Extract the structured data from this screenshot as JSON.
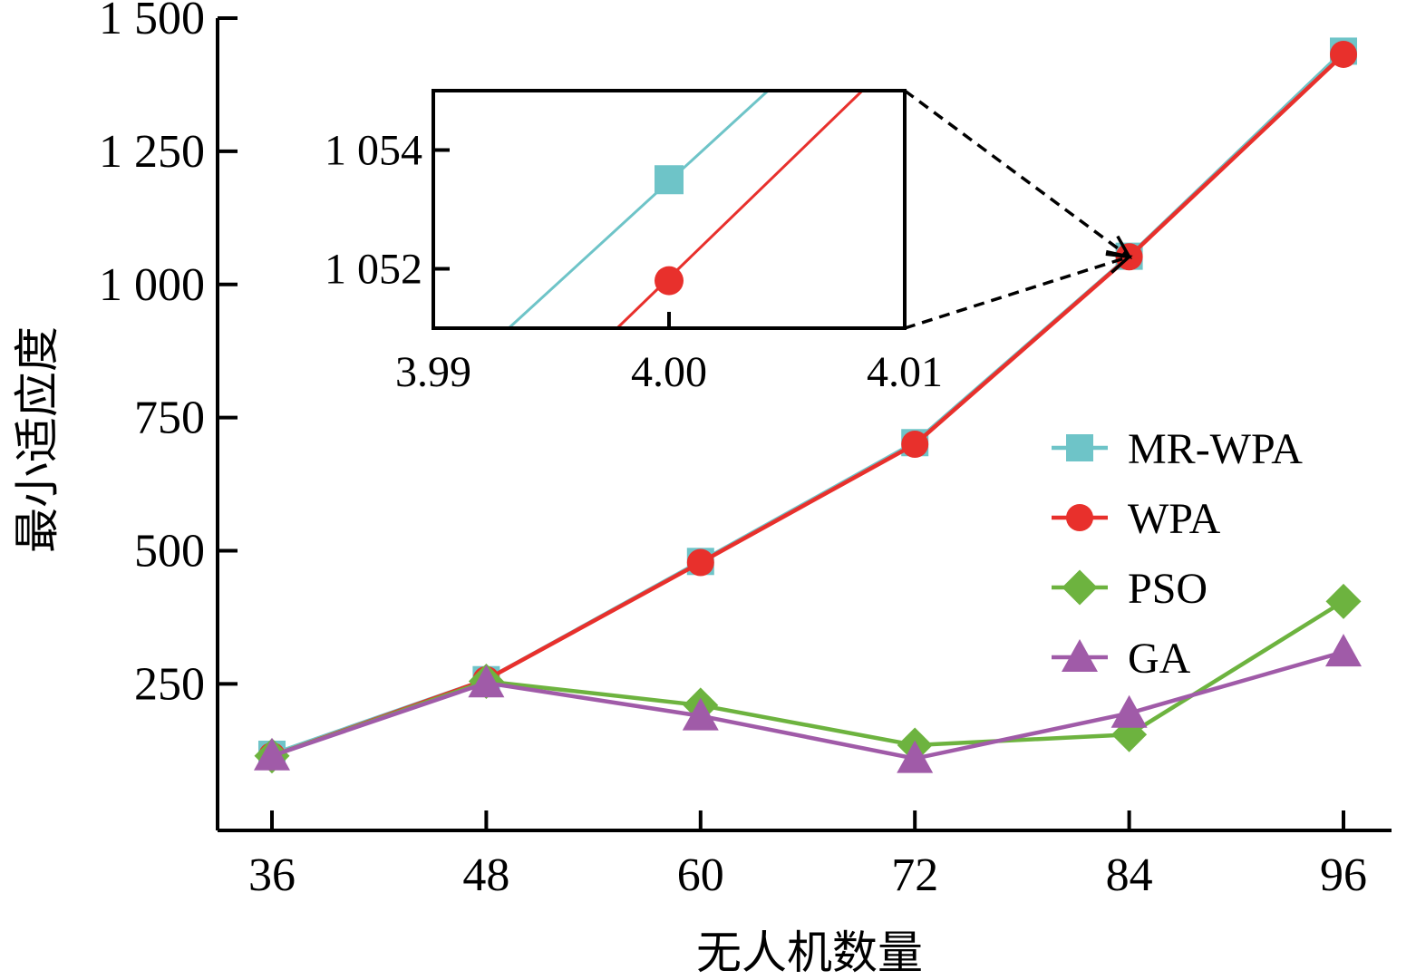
{
  "chart_data": {
    "type": "line",
    "title": "",
    "xlabel": "无人机数量",
    "ylabel": "最小适应度",
    "categories": [
      36,
      48,
      60,
      72,
      84,
      96
    ],
    "xtick_labels": [
      "36",
      "48",
      "60",
      "72",
      "84",
      "96"
    ],
    "ylim": [
      -25,
      1500
    ],
    "yticks": [
      250,
      500,
      750,
      1000,
      1250,
      1500
    ],
    "ytick_labels": [
      "250",
      "500",
      "750",
      "1 000",
      "1 250",
      "1 500"
    ],
    "grid": false,
    "legend_position": "right",
    "series": [
      {
        "name": "MR-WPA",
        "color": "#6ec4c8",
        "marker": "square",
        "values": [
          118,
          258,
          480,
          703,
          1053,
          1438
        ]
      },
      {
        "name": "WPA",
        "color": "#e8302c",
        "marker": "circle",
        "values": [
          115,
          258,
          478,
          700,
          1052,
          1432
        ]
      },
      {
        "name": "PSO",
        "color": "#6db33f",
        "marker": "diamond",
        "values": [
          115,
          255,
          210,
          135,
          155,
          405
        ]
      },
      {
        "name": "GA",
        "color": "#a05ba8",
        "marker": "triangle",
        "values": [
          115,
          252,
          190,
          110,
          195,
          310
        ]
      }
    ],
    "inset": {
      "xlim": [
        3.99,
        4.01
      ],
      "ylim": [
        1051,
        1055
      ],
      "xtick_labels": [
        "3.99",
        "4.00",
        "4.01"
      ],
      "xticks": [
        3.99,
        4.0,
        4.01
      ],
      "ytick_labels": [
        "1 052",
        "1 054"
      ],
      "yticks": [
        1052,
        1054
      ],
      "series": [
        {
          "name": "MR-WPA",
          "point": [
            4.0,
            1053.5
          ],
          "line": [
            [
              3.9932,
              1051.0
            ],
            [
              4.0042,
              1055.0
            ]
          ]
        },
        {
          "name": "WPA",
          "point": [
            4.0,
            1051.8
          ],
          "line": [
            [
              3.9978,
              1051.0
            ],
            [
              4.0082,
              1055.0
            ]
          ]
        }
      ]
    }
  }
}
